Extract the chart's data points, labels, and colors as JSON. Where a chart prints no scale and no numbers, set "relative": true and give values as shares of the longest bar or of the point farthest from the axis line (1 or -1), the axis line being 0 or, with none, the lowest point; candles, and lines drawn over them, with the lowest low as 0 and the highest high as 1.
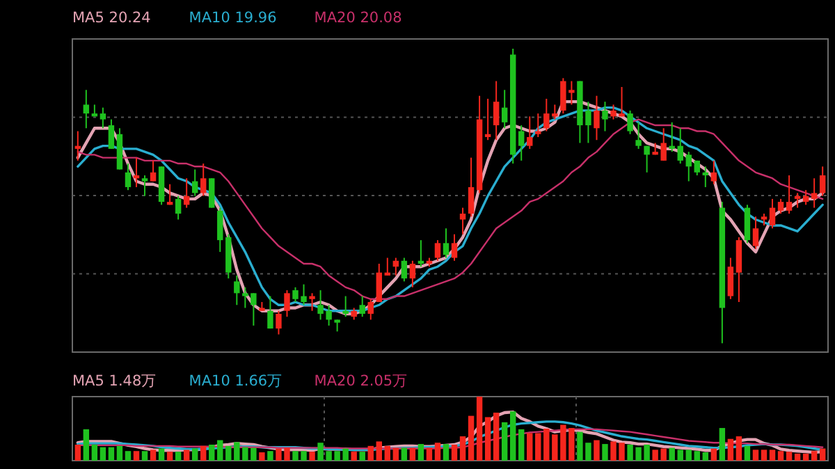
{
  "chart_data": [
    {
      "type": "candlestick",
      "relative": true,
      "grid": "y",
      "legend": "top left",
      "categories": [
        null,
        null,
        null,
        null,
        null,
        null,
        null,
        null,
        null,
        null,
        null,
        null,
        null,
        null,
        null,
        null,
        null,
        null,
        null,
        null,
        null,
        null,
        null,
        null,
        null,
        null,
        null,
        null,
        null,
        null,
        null,
        null,
        null,
        null,
        null,
        null,
        null,
        null,
        null,
        null,
        null,
        null,
        null,
        null,
        null,
        null,
        null,
        null,
        null,
        null,
        null,
        null,
        null,
        null,
        null,
        null,
        null,
        null,
        null,
        null,
        null,
        null,
        null,
        null,
        null,
        null,
        null,
        null,
        null,
        null,
        null,
        null,
        null,
        null,
        null,
        null,
        null,
        null,
        null,
        null,
        null,
        null,
        null,
        null,
        null,
        null,
        null,
        null,
        null,
        null
      ],
      "ohlc": [
        [
          0.66,
          0.72,
          0.62,
          0.67
        ],
        [
          0.81,
          0.86,
          0.73,
          0.78
        ],
        [
          0.78,
          0.81,
          0.77,
          0.77
        ],
        [
          0.78,
          0.8,
          0.73,
          0.76
        ],
        [
          0.74,
          0.76,
          0.66,
          0.66
        ],
        [
          0.71,
          0.73,
          0.59,
          0.59
        ],
        [
          0.58,
          0.61,
          0.52,
          0.53
        ],
        [
          0.56,
          0.63,
          0.53,
          0.57
        ],
        [
          0.56,
          0.57,
          0.5,
          0.55
        ],
        [
          0.55,
          0.62,
          0.55,
          0.58
        ],
        [
          0.6,
          0.6,
          0.47,
          0.48
        ],
        [
          0.47,
          0.54,
          0.47,
          0.48
        ],
        [
          0.49,
          0.5,
          0.42,
          0.44
        ],
        [
          0.47,
          0.56,
          0.46,
          0.5
        ],
        [
          0.55,
          0.59,
          0.5,
          0.51
        ],
        [
          0.51,
          0.61,
          0.5,
          0.56
        ],
        [
          0.56,
          0.56,
          0.46,
          0.46
        ],
        [
          0.45,
          0.46,
          0.31,
          0.35
        ],
        [
          0.36,
          0.37,
          0.22,
          0.24
        ],
        [
          0.21,
          0.23,
          0.13,
          0.17
        ],
        [
          0.17,
          0.19,
          0.12,
          0.16
        ],
        [
          0.17,
          0.17,
          0.06,
          0.13
        ],
        [
          0.11,
          0.14,
          0.11,
          0.12
        ],
        [
          0.11,
          0.16,
          0.05,
          0.05
        ],
        [
          0.05,
          0.11,
          0.03,
          0.1
        ],
        [
          0.11,
          0.18,
          0.09,
          0.17
        ],
        [
          0.18,
          0.19,
          0.14,
          0.15
        ],
        [
          0.16,
          0.2,
          0.13,
          0.14
        ],
        [
          0.15,
          0.17,
          0.11,
          0.16
        ],
        [
          0.13,
          0.18,
          0.08,
          0.1
        ],
        [
          0.11,
          0.13,
          0.06,
          0.08
        ],
        [
          0.08,
          0.08,
          0.04,
          0.07
        ],
        [
          0.11,
          0.16,
          0.09,
          0.1
        ],
        [
          0.09,
          0.12,
          0.08,
          0.11
        ],
        [
          0.13,
          0.16,
          0.09,
          0.1
        ],
        [
          0.1,
          0.15,
          0.08,
          0.14
        ],
        [
          0.14,
          0.27,
          0.14,
          0.24
        ],
        [
          0.23,
          0.29,
          0.23,
          0.24
        ],
        [
          0.26,
          0.29,
          0.23,
          0.28
        ],
        [
          0.28,
          0.29,
          0.21,
          0.22
        ],
        [
          0.22,
          0.28,
          0.19,
          0.27
        ],
        [
          0.28,
          0.35,
          0.26,
          0.27
        ],
        [
          0.27,
          0.29,
          0.26,
          0.28
        ],
        [
          0.29,
          0.35,
          0.28,
          0.34
        ],
        [
          0.34,
          0.39,
          0.29,
          0.3
        ],
        [
          0.29,
          0.37,
          0.28,
          0.34
        ],
        [
          0.42,
          0.46,
          0.37,
          0.44
        ],
        [
          0.44,
          0.63,
          0.43,
          0.53
        ],
        [
          0.52,
          0.84,
          0.51,
          0.76
        ],
        [
          0.7,
          0.83,
          0.69,
          0.71
        ],
        [
          0.74,
          0.89,
          0.69,
          0.82
        ],
        [
          0.8,
          0.86,
          0.73,
          0.75
        ],
        [
          0.98,
          1,
          0.61,
          0.64
        ],
        [
          0.72,
          0.74,
          0.62,
          0.67
        ],
        [
          0.67,
          0.77,
          0.66,
          0.7
        ],
        [
          0.71,
          0.78,
          0.7,
          0.72
        ],
        [
          0.73,
          0.83,
          0.72,
          0.78
        ],
        [
          0.77,
          0.81,
          0.76,
          0.78
        ],
        [
          0.79,
          0.9,
          0.78,
          0.89
        ],
        [
          0.85,
          0.89,
          0.81,
          0.86
        ],
        [
          0.89,
          0.89,
          0.68,
          0.74
        ],
        [
          0.79,
          0.82,
          0.68,
          0.74
        ],
        [
          0.73,
          0.84,
          0.69,
          0.79
        ],
        [
          0.79,
          0.82,
          0.72,
          0.76
        ],
        [
          0.77,
          0.81,
          0.76,
          0.79
        ],
        [
          0.77,
          0.87,
          0.77,
          0.78
        ],
        [
          0.78,
          0.79,
          0.71,
          0.72
        ],
        [
          0.69,
          0.75,
          0.66,
          0.67
        ],
        [
          0.67,
          0.67,
          0.58,
          0.64
        ],
        [
          0.64,
          0.68,
          0.64,
          0.65
        ],
        [
          0.62,
          0.73,
          0.62,
          0.68
        ],
        [
          0.67,
          0.75,
          0.65,
          0.66
        ],
        [
          0.67,
          0.73,
          0.61,
          0.62
        ],
        [
          0.64,
          0.65,
          0.55,
          0.6
        ],
        [
          0.62,
          0.62,
          0.57,
          0.58
        ],
        [
          0.58,
          0.6,
          0.53,
          0.57
        ],
        [
          0.55,
          0.62,
          0.54,
          0.58
        ],
        [
          0.46,
          0.48,
          0,
          0.12
        ],
        [
          0.16,
          0.29,
          0.15,
          0.26
        ],
        [
          0.24,
          0.36,
          0.14,
          0.35
        ],
        [
          0.46,
          0.47,
          0.34,
          0.35
        ],
        [
          0.33,
          0.43,
          0.32,
          0.39
        ],
        [
          0.42,
          0.44,
          0.4,
          0.43
        ],
        [
          0.4,
          0.49,
          0.39,
          0.46
        ],
        [
          0.45,
          0.49,
          0.44,
          0.48
        ],
        [
          0.45,
          0.57,
          0.44,
          0.48
        ],
        [
          0.49,
          0.51,
          0.46,
          0.5
        ],
        [
          0.48,
          0.52,
          0.47,
          0.5
        ],
        [
          0.49,
          0.56,
          0.46,
          0.51
        ],
        [
          0.51,
          0.6,
          0.5,
          0.57
        ]
      ],
      "colors": [
        "#f5261d",
        "#1fc21f",
        "#1fc21f",
        "#1fc21f",
        "#1fc21f",
        "#1fc21f",
        "#1fc21f",
        "#f5261d",
        "#1fc21f",
        "#f5261d",
        "#1fc21f",
        "#f5261d",
        "#1fc21f",
        "#f5261d",
        "#1fc21f",
        "#f5261d",
        "#1fc21f",
        "#1fc21f",
        "#1fc21f",
        "#1fc21f",
        "#1fc21f",
        "#1fc21f",
        "#f5261d",
        "#1fc21f",
        "#f5261d",
        "#f5261d",
        "#1fc21f",
        "#1fc21f",
        "#f5261d",
        "#1fc21f",
        "#1fc21f",
        "#1fc21f",
        "#1fc21f",
        "#f5261d",
        "#1fc21f",
        "#f5261d",
        "#f5261d",
        "#f5261d",
        "#f5261d",
        "#1fc21f",
        "#f5261d",
        "#1fc21f",
        "#f5261d",
        "#f5261d",
        "#1fc21f",
        "#f5261d",
        "#f5261d",
        "#f5261d",
        "#f5261d",
        "#f5261d",
        "#f5261d",
        "#1fc21f",
        "#1fc21f",
        "#1fc21f",
        "#f5261d",
        "#f5261d",
        "#f5261d",
        "#f5261d",
        "#f5261d",
        "#f5261d",
        "#1fc21f",
        "#1fc21f",
        "#f5261d",
        "#1fc21f",
        "#f5261d",
        "#f5261d",
        "#1fc21f",
        "#1fc21f",
        "#1fc21f",
        "#f5261d",
        "#f5261d",
        "#1fc21f",
        "#1fc21f",
        "#1fc21f",
        "#1fc21f",
        "#1fc21f",
        "#f5261d",
        "#1fc21f",
        "#f5261d",
        "#f5261d",
        "#1fc21f",
        "#f5261d",
        "#f5261d",
        "#f5261d",
        "#f5261d",
        "#f5261d",
        "#f5261d",
        "#f5261d",
        "#f5261d",
        "#f5261d"
      ],
      "series": [
        {
          "type": "line",
          "name": "MA5 20.24",
          "color": "#e3a3b3",
          "values": [
            0.63,
            0.68,
            0.73,
            0.73,
            0.73,
            0.68,
            0.61,
            0.55,
            0.54,
            0.54,
            0.53,
            0.51,
            0.5,
            0.49,
            0.49,
            0.51,
            0.5,
            0.45,
            0.36,
            0.25,
            0.17,
            0.13,
            0.11,
            0.11,
            0.11,
            0.12,
            0.12,
            0.13,
            0.13,
            0.14,
            0.13,
            0.11,
            0.1,
            0.1,
            0.11,
            0.13,
            0.16,
            0.19,
            0.22,
            0.26,
            0.26,
            0.26,
            0.27,
            0.28,
            0.29,
            0.32,
            0.36,
            0.42,
            0.53,
            0.62,
            0.69,
            0.73,
            0.74,
            0.73,
            0.72,
            0.72,
            0.73,
            0.75,
            0.82,
            0.82,
            0.82,
            0.81,
            0.8,
            0.79,
            0.78,
            0.77,
            0.75,
            0.71,
            0.68,
            0.67,
            0.66,
            0.66,
            0.65,
            0.63,
            0.61,
            0.59,
            0.56,
            0.45,
            0.42,
            0.38,
            0.34,
            0.31,
            0.37,
            0.43,
            0.45,
            0.46,
            0.48,
            0.49,
            0.49,
            0.51
          ]
        },
        {
          "type": "line",
          "name": "MA10 19.96",
          "color": "#2aaed0",
          "values": [
            0.6,
            0.63,
            0.66,
            0.67,
            0.67,
            0.66,
            0.66,
            0.66,
            0.65,
            0.64,
            0.62,
            0.59,
            0.56,
            0.55,
            0.53,
            0.52,
            0.51,
            0.47,
            0.41,
            0.36,
            0.31,
            0.25,
            0.19,
            0.15,
            0.13,
            0.13,
            0.14,
            0.13,
            0.13,
            0.12,
            0.11,
            0.11,
            0.11,
            0.11,
            0.11,
            0.12,
            0.13,
            0.15,
            0.16,
            0.18,
            0.2,
            0.22,
            0.25,
            0.26,
            0.28,
            0.31,
            0.33,
            0.39,
            0.44,
            0.5,
            0.55,
            0.6,
            0.63,
            0.66,
            0.69,
            0.73,
            0.75,
            0.76,
            0.77,
            0.78,
            0.79,
            0.79,
            0.79,
            0.8,
            0.8,
            0.79,
            0.77,
            0.75,
            0.73,
            0.72,
            0.71,
            0.7,
            0.69,
            0.67,
            0.66,
            0.64,
            0.62,
            0.55,
            0.51,
            0.47,
            0.44,
            0.42,
            0.41,
            0.4,
            0.4,
            0.39,
            0.38,
            0.41,
            0.44,
            0.47
          ]
        },
        {
          "type": "line",
          "name": "MA20 20.08",
          "color": "#c8306a",
          "values": [
            0.65,
            0.64,
            0.64,
            0.63,
            0.63,
            0.63,
            0.63,
            0.63,
            0.62,
            0.62,
            0.62,
            0.62,
            0.61,
            0.61,
            0.6,
            0.6,
            0.59,
            0.58,
            0.55,
            0.51,
            0.47,
            0.43,
            0.39,
            0.36,
            0.33,
            0.31,
            0.29,
            0.27,
            0.27,
            0.26,
            0.23,
            0.21,
            0.19,
            0.18,
            0.16,
            0.15,
            0.15,
            0.15,
            0.16,
            0.16,
            0.17,
            0.18,
            0.19,
            0.2,
            0.21,
            0.22,
            0.24,
            0.27,
            0.31,
            0.35,
            0.39,
            0.41,
            0.43,
            0.45,
            0.48,
            0.49,
            0.51,
            0.53,
            0.55,
            0.58,
            0.6,
            0.63,
            0.65,
            0.68,
            0.71,
            0.73,
            0.75,
            0.76,
            0.75,
            0.74,
            0.74,
            0.74,
            0.73,
            0.73,
            0.72,
            0.72,
            0.71,
            0.68,
            0.65,
            0.62,
            0.6,
            0.58,
            0.57,
            0.56,
            0.54,
            0.53,
            0.52,
            0.51,
            0.5,
            0.49
          ]
        }
      ]
    },
    {
      "type": "bar",
      "relative": true,
      "grid": "x",
      "legend": "top left",
      "categories": [
        null,
        null,
        null,
        null,
        null,
        null,
        null,
        null,
        null,
        null,
        null,
        null,
        null,
        null,
        null,
        null,
        null,
        null,
        null,
        null,
        null,
        null,
        null,
        null,
        null,
        null,
        null,
        null,
        null,
        null,
        null,
        null,
        null,
        null,
        null,
        null,
        null,
        null,
        null,
        null,
        null,
        null,
        null,
        null,
        null,
        null,
        null,
        null,
        null,
        null,
        null,
        null,
        null,
        null,
        null,
        null,
        null,
        null,
        null,
        null,
        null,
        null,
        null,
        null,
        null,
        null,
        null,
        null,
        null,
        null,
        null,
        null,
        null,
        null,
        null,
        null,
        null,
        null,
        null,
        null,
        null,
        null,
        null,
        null,
        null,
        null,
        null,
        null,
        null,
        null
      ],
      "values": [
        0.25,
        0.49,
        0.25,
        0.21,
        0.21,
        0.23,
        0.15,
        0.15,
        0.15,
        0.17,
        0.19,
        0.14,
        0.14,
        0.17,
        0.19,
        0.23,
        0.25,
        0.32,
        0.23,
        0.29,
        0.21,
        0.2,
        0.13,
        0.15,
        0.19,
        0.2,
        0.15,
        0.15,
        0.14,
        0.28,
        0.15,
        0.15,
        0.19,
        0.14,
        0.14,
        0.23,
        0.3,
        0.23,
        0.2,
        0.2,
        0.2,
        0.26,
        0.2,
        0.28,
        0.26,
        0.25,
        0.38,
        0.7,
        1,
        0.68,
        0.75,
        0.6,
        0.77,
        0.49,
        0.43,
        0.43,
        0.5,
        0.41,
        0.56,
        0.51,
        0.45,
        0.28,
        0.32,
        0.26,
        0.3,
        0.28,
        0.25,
        0.21,
        0.25,
        0.17,
        0.19,
        0.2,
        0.17,
        0.17,
        0.15,
        0.13,
        0.19,
        0.51,
        0.34,
        0.38,
        0.23,
        0.17,
        0.17,
        0.17,
        0.15,
        0.14,
        0.11,
        0.11,
        0.15,
        0.19
      ],
      "colors": [
        "#f5261d",
        "#1fc21f",
        "#1fc21f",
        "#1fc21f",
        "#1fc21f",
        "#1fc21f",
        "#1fc21f",
        "#f5261d",
        "#1fc21f",
        "#f5261d",
        "#1fc21f",
        "#f5261d",
        "#1fc21f",
        "#f5261d",
        "#1fc21f",
        "#f5261d",
        "#1fc21f",
        "#1fc21f",
        "#1fc21f",
        "#1fc21f",
        "#1fc21f",
        "#1fc21f",
        "#f5261d",
        "#1fc21f",
        "#f5261d",
        "#f5261d",
        "#1fc21f",
        "#1fc21f",
        "#f5261d",
        "#1fc21f",
        "#1fc21f",
        "#1fc21f",
        "#1fc21f",
        "#f5261d",
        "#1fc21f",
        "#f5261d",
        "#f5261d",
        "#f5261d",
        "#f5261d",
        "#1fc21f",
        "#f5261d",
        "#1fc21f",
        "#f5261d",
        "#f5261d",
        "#1fc21f",
        "#f5261d",
        "#f5261d",
        "#f5261d",
        "#f5261d",
        "#f5261d",
        "#f5261d",
        "#1fc21f",
        "#1fc21f",
        "#1fc21f",
        "#f5261d",
        "#f5261d",
        "#f5261d",
        "#f5261d",
        "#f5261d",
        "#f5261d",
        "#1fc21f",
        "#1fc21f",
        "#f5261d",
        "#1fc21f",
        "#f5261d",
        "#f5261d",
        "#1fc21f",
        "#1fc21f",
        "#1fc21f",
        "#f5261d",
        "#f5261d",
        "#1fc21f",
        "#1fc21f",
        "#1fc21f",
        "#1fc21f",
        "#1fc21f",
        "#f5261d",
        "#1fc21f",
        "#f5261d",
        "#f5261d",
        "#1fc21f",
        "#f5261d",
        "#f5261d",
        "#f5261d",
        "#f5261d",
        "#f5261d",
        "#f5261d",
        "#f5261d",
        "#f5261d",
        "#f5261d"
      ],
      "series": [
        {
          "type": "line",
          "name": "MA5 1.48万",
          "color": "#e3a3b3",
          "values": [
            0.28,
            0.3,
            0.3,
            0.3,
            0.3,
            0.27,
            0.24,
            0.22,
            0.19,
            0.17,
            0.16,
            0.16,
            0.16,
            0.17,
            0.17,
            0.18,
            0.21,
            0.24,
            0.25,
            0.27,
            0.26,
            0.25,
            0.22,
            0.2,
            0.18,
            0.17,
            0.17,
            0.17,
            0.16,
            0.19,
            0.18,
            0.18,
            0.18,
            0.17,
            0.17,
            0.17,
            0.2,
            0.21,
            0.22,
            0.23,
            0.23,
            0.22,
            0.22,
            0.23,
            0.24,
            0.25,
            0.29,
            0.37,
            0.54,
            0.61,
            0.7,
            0.75,
            0.76,
            0.66,
            0.61,
            0.54,
            0.5,
            0.45,
            0.47,
            0.48,
            0.47,
            0.44,
            0.42,
            0.37,
            0.32,
            0.29,
            0.28,
            0.26,
            0.26,
            0.24,
            0.22,
            0.21,
            0.2,
            0.19,
            0.18,
            0.16,
            0.16,
            0.23,
            0.27,
            0.31,
            0.33,
            0.33,
            0.27,
            0.24,
            0.18,
            0.16,
            0.15,
            0.14,
            0.13,
            0.14
          ]
        },
        {
          "type": "line",
          "name": "MA10 1.66万",
          "color": "#2aaed0",
          "values": [
            0.26,
            0.27,
            0.27,
            0.27,
            0.27,
            0.27,
            0.26,
            0.25,
            0.24,
            0.23,
            0.21,
            0.2,
            0.19,
            0.18,
            0.18,
            0.18,
            0.19,
            0.2,
            0.21,
            0.22,
            0.22,
            0.22,
            0.21,
            0.21,
            0.21,
            0.21,
            0.21,
            0.2,
            0.19,
            0.19,
            0.18,
            0.18,
            0.17,
            0.17,
            0.17,
            0.17,
            0.18,
            0.19,
            0.19,
            0.2,
            0.2,
            0.21,
            0.21,
            0.22,
            0.22,
            0.23,
            0.25,
            0.3,
            0.37,
            0.42,
            0.47,
            0.52,
            0.56,
            0.58,
            0.59,
            0.6,
            0.61,
            0.61,
            0.6,
            0.58,
            0.55,
            0.51,
            0.47,
            0.44,
            0.41,
            0.38,
            0.36,
            0.34,
            0.33,
            0.31,
            0.29,
            0.27,
            0.25,
            0.23,
            0.22,
            0.21,
            0.2,
            0.2,
            0.21,
            0.22,
            0.24,
            0.25,
            0.26,
            0.25,
            0.25,
            0.24,
            0.23,
            0.21,
            0.19,
            0.17
          ]
        },
        {
          "type": "line",
          "name": "MA20 2.05万",
          "color": "#c8306a",
          "values": [
            0.24,
            0.24,
            0.24,
            0.24,
            0.24,
            0.24,
            0.24,
            0.23,
            0.23,
            0.23,
            0.23,
            0.23,
            0.22,
            0.22,
            0.22,
            0.22,
            0.22,
            0.22,
            0.21,
            0.21,
            0.21,
            0.21,
            0.21,
            0.21,
            0.2,
            0.2,
            0.2,
            0.2,
            0.2,
            0.2,
            0.2,
            0.2,
            0.19,
            0.19,
            0.19,
            0.19,
            0.19,
            0.19,
            0.19,
            0.19,
            0.19,
            0.19,
            0.19,
            0.19,
            0.2,
            0.2,
            0.21,
            0.24,
            0.28,
            0.31,
            0.34,
            0.37,
            0.4,
            0.42,
            0.44,
            0.45,
            0.46,
            0.47,
            0.48,
            0.49,
            0.49,
            0.49,
            0.49,
            0.48,
            0.47,
            0.46,
            0.45,
            0.43,
            0.41,
            0.39,
            0.37,
            0.35,
            0.33,
            0.31,
            0.3,
            0.29,
            0.28,
            0.28,
            0.27,
            0.27,
            0.27,
            0.26,
            0.26,
            0.25,
            0.25,
            0.25,
            0.24,
            0.23,
            0.22,
            0.21
          ]
        }
      ]
    }
  ]
}
